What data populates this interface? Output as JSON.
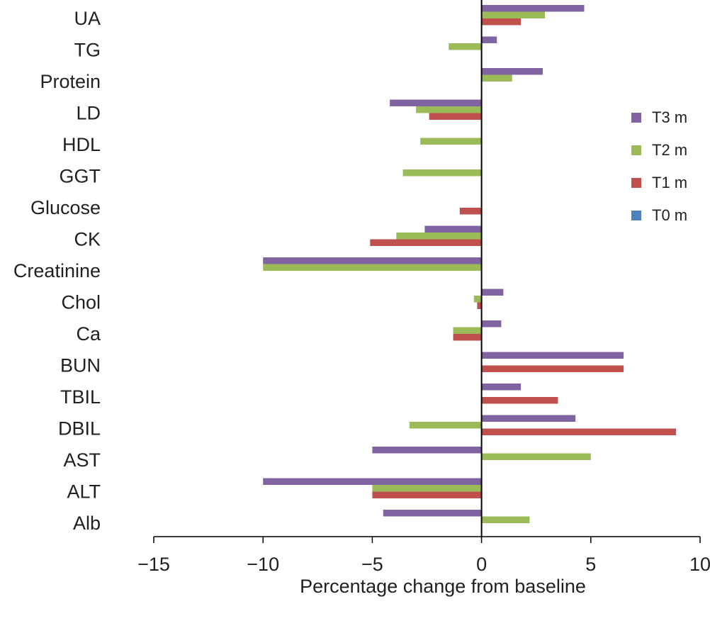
{
  "chart_data": {
    "type": "bar",
    "orientation": "horizontal",
    "categories": [
      "UA",
      "TG",
      "Protein",
      "LD",
      "HDL",
      "GGT",
      "Glucose",
      "CK",
      "Creatinine",
      "Chol",
      "Ca",
      "BUN",
      "TBIL",
      "DBIL",
      "AST",
      "ALT",
      "Alb"
    ],
    "series": [
      {
        "name": "T3 m",
        "color": "#8064a2",
        "values": [
          4.7,
          0.7,
          2.8,
          -4.2,
          0,
          0,
          0,
          -2.6,
          -10.0,
          1.0,
          0.9,
          6.5,
          1.8,
          4.3,
          -5.0,
          -10.0,
          -4.5
        ]
      },
      {
        "name": "T2 m",
        "color": "#9bbb59",
        "values": [
          2.9,
          -1.5,
          1.4,
          -3.0,
          -2.8,
          -3.6,
          0,
          -3.9,
          -10.0,
          -0.35,
          -1.3,
          0,
          0,
          -3.3,
          5.0,
          -5.0,
          2.2
        ]
      },
      {
        "name": "T1 m",
        "color": "#c0504d",
        "values": [
          1.8,
          0,
          0,
          -2.4,
          0,
          0,
          -1.0,
          -5.1,
          0,
          -0.2,
          -1.3,
          6.5,
          3.5,
          8.9,
          0,
          -5.0,
          0
        ]
      },
      {
        "name": "T0 m",
        "color": "#4f81bd",
        "values": [
          0,
          0,
          0,
          0,
          0,
          0,
          0,
          0,
          0,
          0,
          0,
          0,
          0,
          0,
          0,
          0,
          0
        ]
      }
    ],
    "xlabel": "Percentage change from baseline",
    "ylabel": "",
    "xlim": [
      -15,
      10
    ],
    "xticks": [
      -15,
      -10,
      -5,
      0,
      5,
      10
    ],
    "xtick_labels": [
      "−15",
      "−10",
      "−5",
      "0",
      "5",
      "10"
    ],
    "legend_order": [
      "T3 m",
      "T2 m",
      "T1 m",
      "T0 m"
    ],
    "legend_position": "right",
    "grid": false
  }
}
